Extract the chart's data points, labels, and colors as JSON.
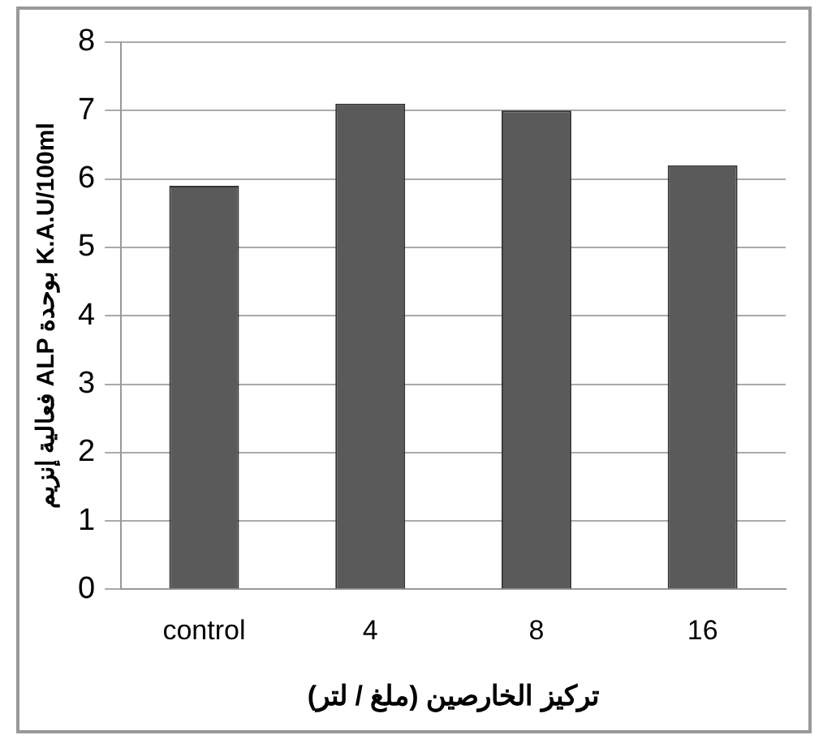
{
  "chart_data": {
    "type": "bar",
    "xlabel": "تركيز الخارصين (ملغ / لتر)",
    "ylabel": "فعالية إنزيم ALP بوحدة K.A.U/100ml",
    "categories": [
      "control",
      "4",
      "8",
      "16"
    ],
    "values": [
      5.9,
      7.1,
      7.0,
      6.2
    ],
    "color": "#5a5a5a",
    "ylim": [
      0,
      8
    ],
    "yticks": [
      0,
      1,
      2,
      3,
      4,
      5,
      6,
      7,
      8
    ],
    "grid": "y",
    "legend": false
  }
}
